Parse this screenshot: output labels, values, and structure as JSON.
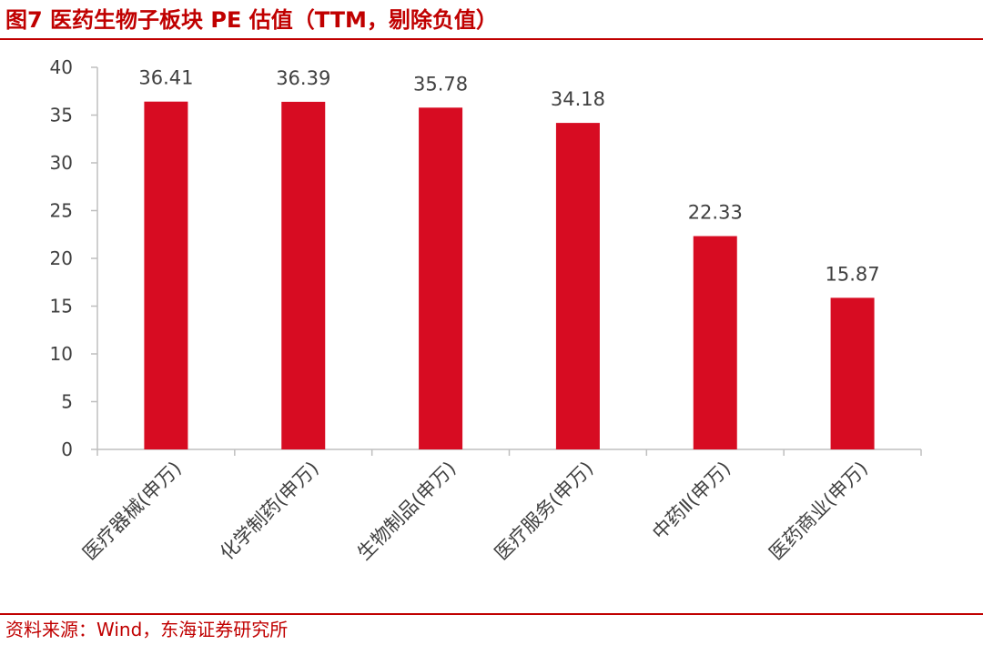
{
  "figure": {
    "title": "图7  医药生物子板块 PE 估值（TTM，剔除负值）",
    "source": "资料来源：Wind，东海证券研究所"
  },
  "colors": {
    "accent": "#c00000",
    "bar": "#d70c22",
    "axis": "#bfbfbf",
    "text": "#404040"
  },
  "chart_data": {
    "type": "bar",
    "categories": [
      "医疗器械(申万)",
      "化学制药(申万)",
      "生物制品(申万)",
      "医疗服务(申万)",
      "中药Ⅱ(申万)",
      "医药商业(申万)"
    ],
    "values": [
      36.41,
      36.39,
      35.78,
      34.18,
      22.33,
      15.87
    ],
    "data_labels": [
      "36.41",
      "36.39",
      "35.78",
      "34.18",
      "22.33",
      "15.87"
    ],
    "yticks": [
      "0",
      "5",
      "10",
      "15",
      "20",
      "25",
      "30",
      "35",
      "40"
    ],
    "ylim": [
      0,
      40
    ],
    "xlabel": "",
    "ylabel": "",
    "grid": false,
    "legend": "none"
  }
}
